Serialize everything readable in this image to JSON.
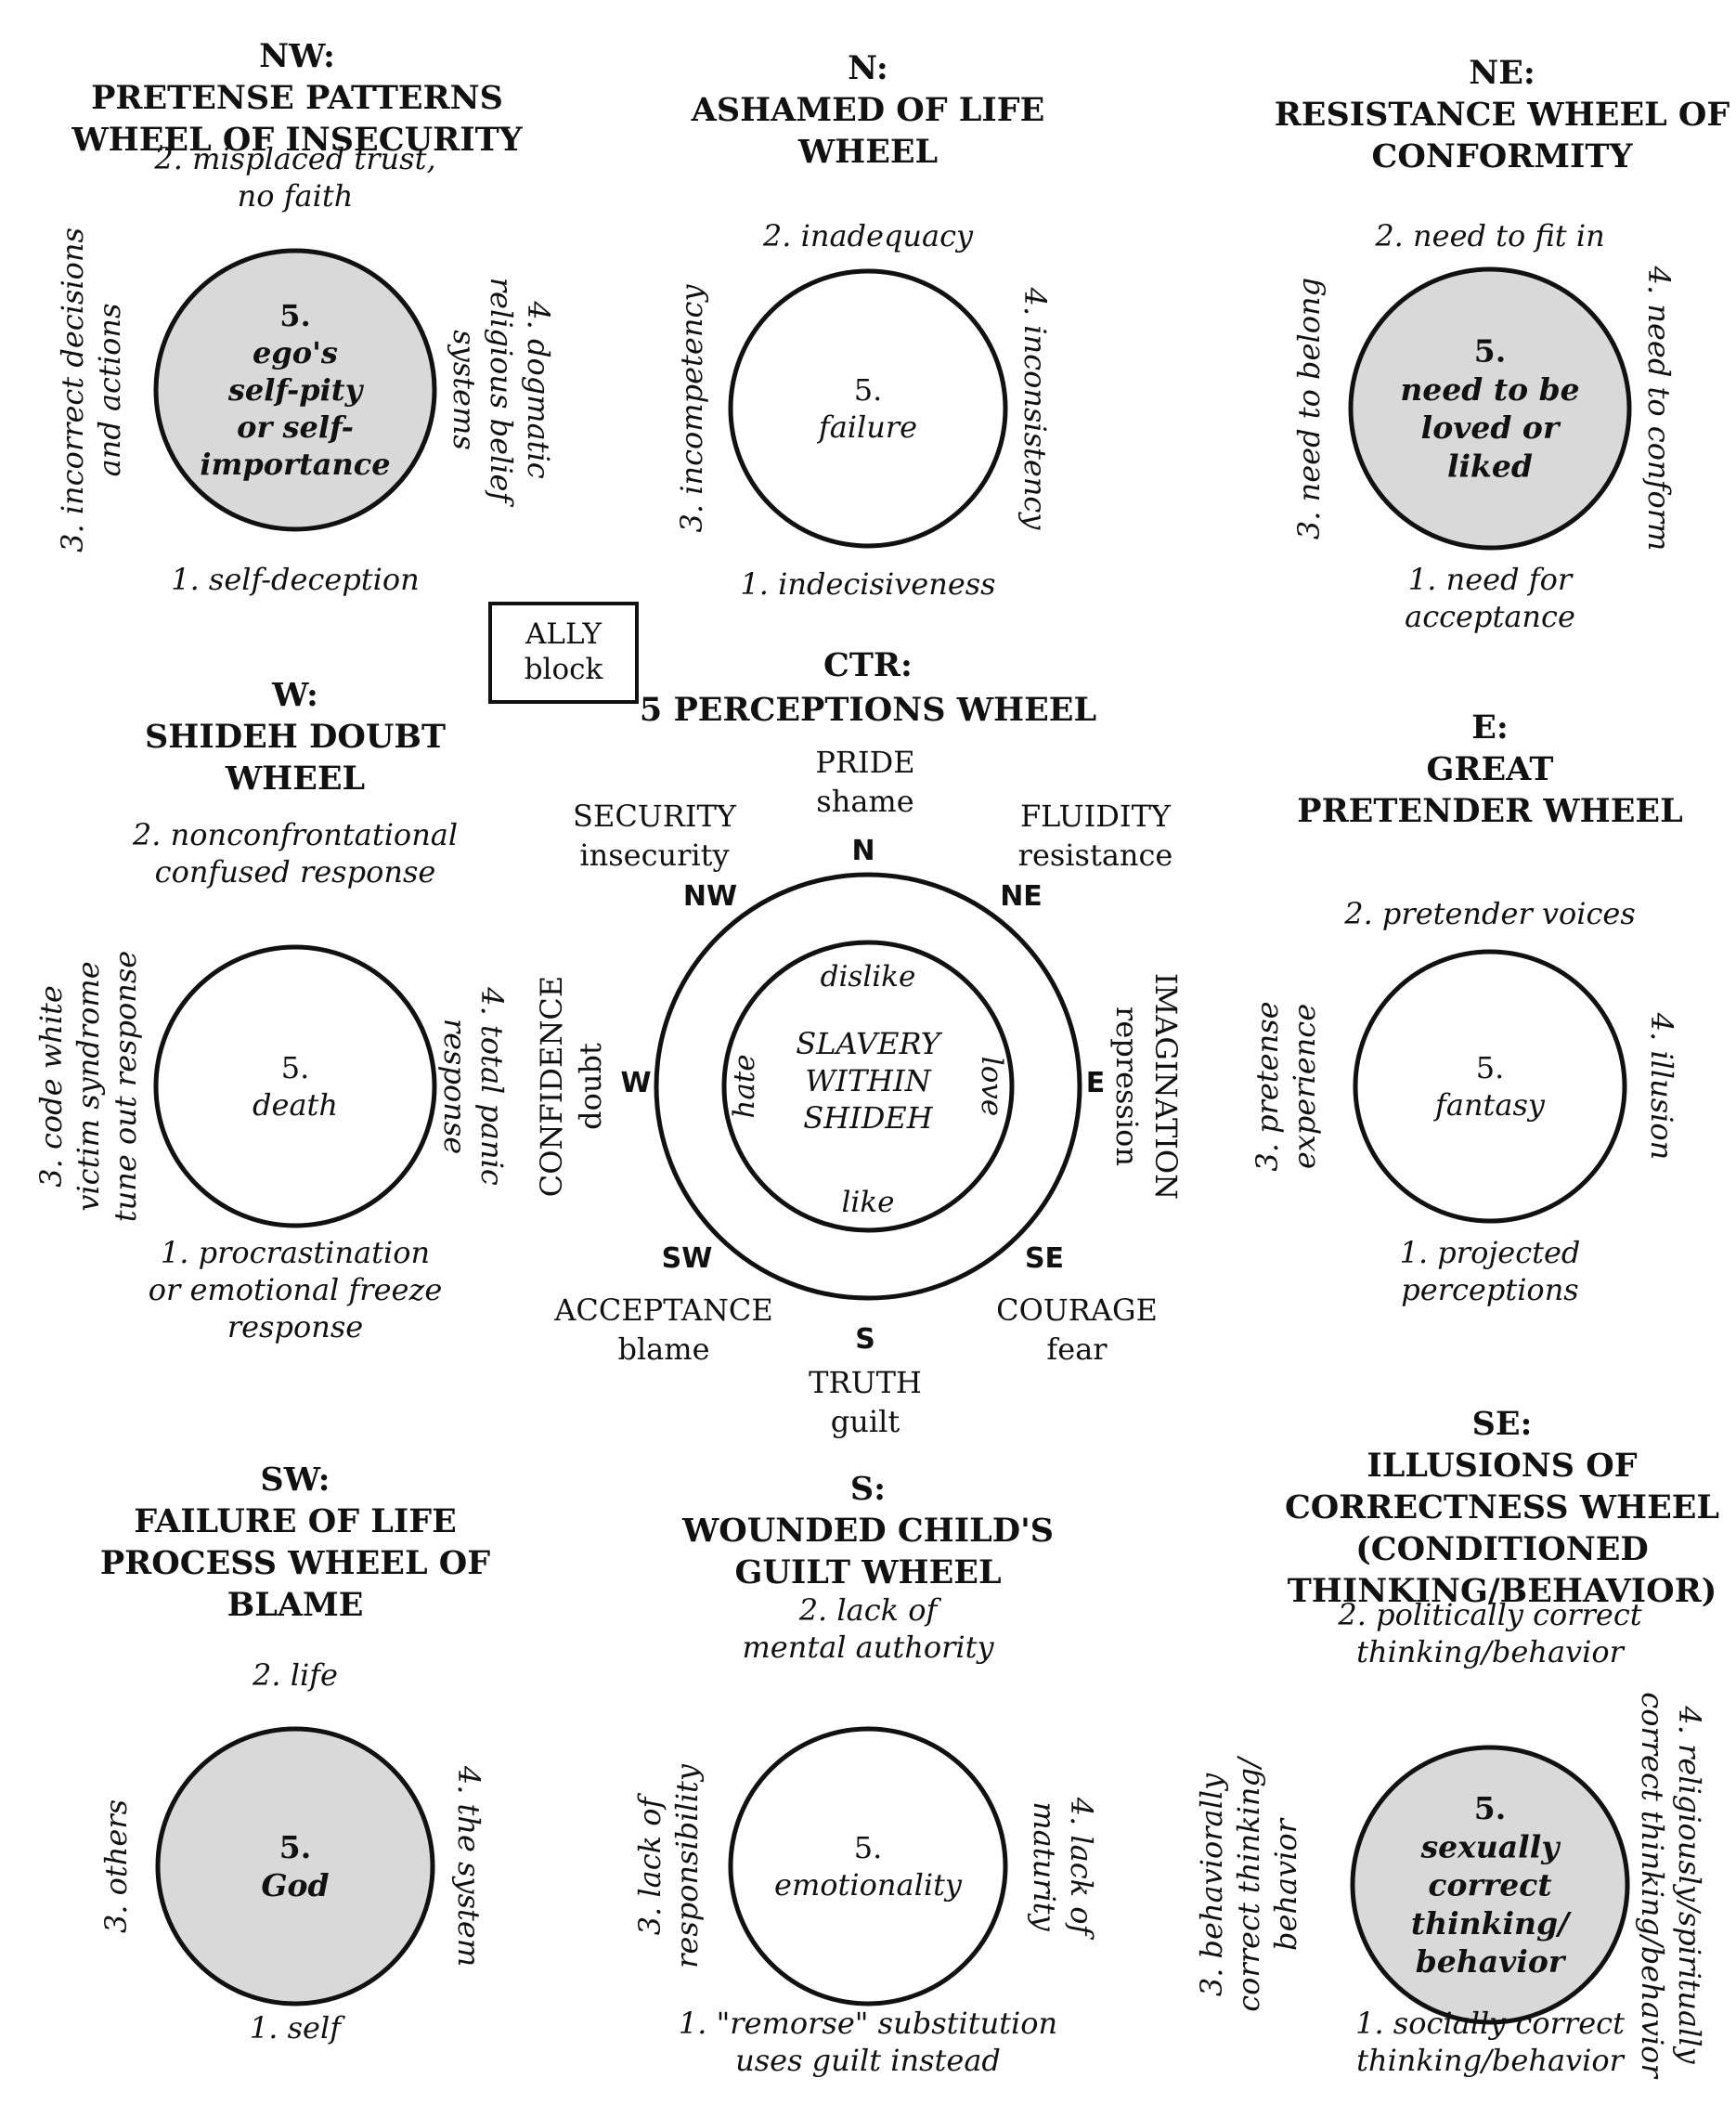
{
  "colors": {
    "ink": "#111111",
    "shade": "#d9d9d9",
    "paper": "#ffffff"
  },
  "ally_block": [
    "ALLY",
    "block"
  ],
  "wheels": {
    "nw": {
      "title": [
        "NW:",
        "PRETENSE PATTERNS",
        "WHEEL OF INSECURITY"
      ],
      "top": [
        "2. misplaced trust,",
        "no faith"
      ],
      "left": [
        "3. incorrect decisions",
        "and actions"
      ],
      "right": [
        "4. dogmatic",
        "religious belief",
        "systems"
      ],
      "bottom": [
        "1. self-deception"
      ],
      "center": [
        "5.",
        "ego's",
        "self-pity",
        "or self-",
        "importance"
      ],
      "shaded": true
    },
    "n": {
      "title": [
        "N:",
        "ASHAMED OF LIFE",
        "WHEEL"
      ],
      "top": [
        "2. inadequacy"
      ],
      "left": [
        "3. incompetency"
      ],
      "right": [
        "4. inconsistency"
      ],
      "bottom": [
        "1. indecisiveness"
      ],
      "center": [
        "5.",
        "failure"
      ],
      "shaded": false
    },
    "ne": {
      "title": [
        "NE:",
        "RESISTANCE WHEEL OF",
        "CONFORMITY"
      ],
      "top": [
        "2. need to fit in"
      ],
      "left": [
        "3. need to belong"
      ],
      "right": [
        "4. need to conform"
      ],
      "bottom": [
        "1. need for",
        "acceptance"
      ],
      "center": [
        "5.",
        "need to be",
        "loved or",
        "liked"
      ],
      "shaded": true
    },
    "w": {
      "title": [
        "W:",
        "SHIDEH DOUBT",
        "WHEEL"
      ],
      "top": [
        "2. nonconfrontational",
        "confused response"
      ],
      "left": [
        "3. code white",
        "victim syndrome",
        "tune out response"
      ],
      "right": [
        "4. total panic",
        "response"
      ],
      "bottom": [
        "1. procrastination",
        "or emotional freeze",
        "response"
      ],
      "center": [
        "5.",
        "death"
      ],
      "shaded": false
    },
    "e": {
      "title": [
        "E:",
        "GREAT",
        "PRETENDER WHEEL"
      ],
      "top": [
        "2. pretender voices"
      ],
      "left": [
        "3. pretense",
        "experience"
      ],
      "right": [
        "4. illusion"
      ],
      "bottom": [
        "1. projected",
        "perceptions"
      ],
      "center": [
        "5.",
        "fantasy"
      ],
      "shaded": false
    },
    "sw": {
      "title": [
        "SW:",
        "FAILURE OF LIFE",
        "PROCESS WHEEL OF",
        "BLAME"
      ],
      "top": [
        "2. life"
      ],
      "left": [
        "3. others"
      ],
      "right": [
        "4. the system"
      ],
      "bottom": [
        "1. self"
      ],
      "center": [
        "5.",
        "God"
      ],
      "shaded": true
    },
    "s": {
      "title": [
        "S:",
        "WOUNDED CHILD'S",
        "GUILT WHEEL"
      ],
      "top": [
        "2. lack of",
        "mental authority"
      ],
      "left": [
        "3. lack of",
        "responsibility"
      ],
      "right": [
        "4. lack of",
        "maturity"
      ],
      "bottom": [
        "1. \"remorse\" substitution",
        "uses guilt instead"
      ],
      "center": [
        "5.",
        "emotionality"
      ],
      "shaded": false
    },
    "se": {
      "title": [
        "SE:",
        "ILLUSIONS OF",
        "CORRECTNESS WHEEL",
        "(CONDITIONED",
        "THINKING/BEHAVIOR)"
      ],
      "top": [
        "2. politically correct",
        "thinking/behavior"
      ],
      "left": [
        "3. behaviorally",
        "correct thinking/",
        "behavior"
      ],
      "right": [
        "4. religiously/spiritually",
        "correct thinking/behavior"
      ],
      "bottom": [
        "1. socially correct",
        "thinking/behavior"
      ],
      "center": [
        "5.",
        "sexually",
        "correct",
        "thinking/",
        "behavior"
      ],
      "shaded": true
    }
  },
  "center_wheel": {
    "title": [
      "CTR:",
      "5 PERCEPTIONS WHEEL"
    ],
    "compass": {
      "n": "N",
      "ne": "NE",
      "e": "E",
      "se": "SE",
      "s": "S",
      "sw": "SW",
      "w": "W",
      "nw": "NW"
    },
    "labels": {
      "n": [
        "PRIDE",
        "shame"
      ],
      "ne": [
        "FLUIDITY",
        "resistance"
      ],
      "e": [
        "IMAGINATION",
        "repression"
      ],
      "se": [
        "COURAGE",
        "fear"
      ],
      "s": [
        "TRUTH",
        "guilt"
      ],
      "sw": [
        "ACCEPTANCE",
        "blame"
      ],
      "w": [
        "CONFIDENCE",
        "doubt"
      ],
      "nw": [
        "SECURITY",
        "insecurity"
      ]
    },
    "inner": {
      "top": "dislike",
      "bottom": "like",
      "left": "hate",
      "right": "love"
    },
    "center": [
      "SLAVERY",
      "WITHIN",
      "SHIDEH"
    ]
  }
}
